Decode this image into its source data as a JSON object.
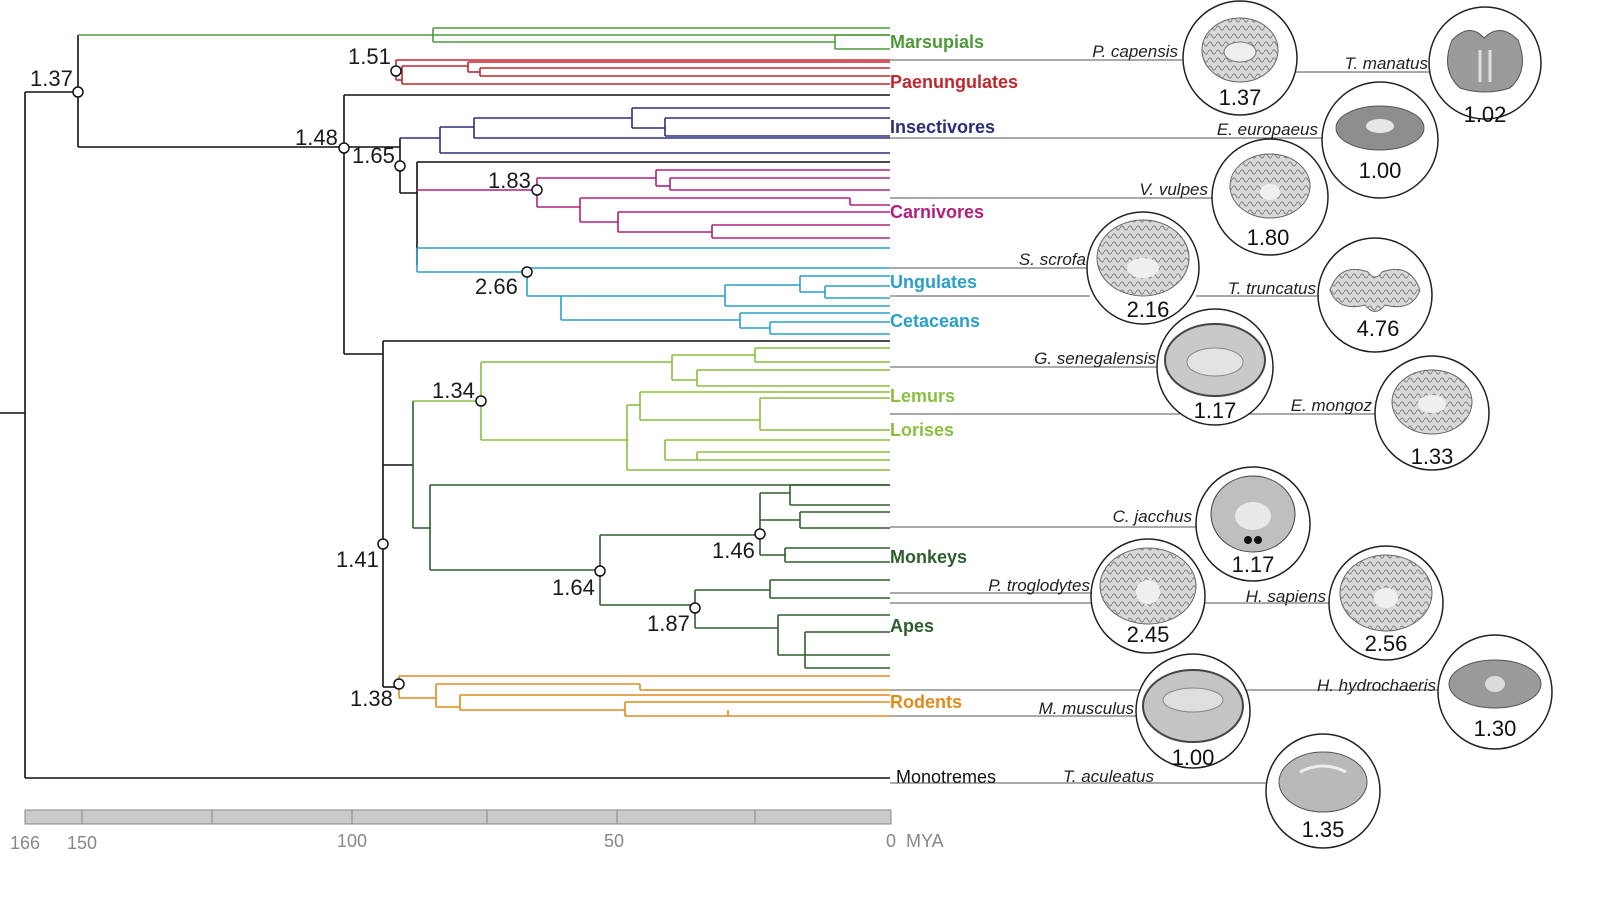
{
  "colors": {
    "black": "#111111",
    "marsupials": "#4e9a3a",
    "paenungulates": "#c0272d",
    "insectivores": "#2b2f7a",
    "carnivores": "#b0207a",
    "ungulates": "#2aa0c8",
    "primates_light": "#8bbf3f",
    "primates_dark": "#2f5e2c",
    "rodents": "#e08a1e",
    "axis_fill": "#c9cbca",
    "axis_text": "#8a8a8a"
  },
  "clades": [
    {
      "id": "marsupials",
      "label": "Marsupials",
      "color": "#4e9a3a"
    },
    {
      "id": "paenungulates",
      "label": "Paenungulates",
      "color": "#c0272d"
    },
    {
      "id": "insectivores",
      "label": "Insectivores",
      "color": "#2b2f7a"
    },
    {
      "id": "carnivores",
      "label": "Carnivores",
      "color": "#b0207a"
    },
    {
      "id": "ungulates",
      "label": "Ungulates",
      "color": "#2aa0c8"
    },
    {
      "id": "cetaceans",
      "label": "Cetaceans",
      "color": "#2aa0c8"
    },
    {
      "id": "lemurs",
      "label": "Lemurs",
      "color": "#8bbf3f"
    },
    {
      "id": "lorises",
      "label": "Lorises",
      "color": "#8bbf3f"
    },
    {
      "id": "monkeys",
      "label": "Monkeys",
      "color": "#2f5e2c"
    },
    {
      "id": "apes",
      "label": "Apes",
      "color": "#2f5e2c"
    },
    {
      "id": "rodents",
      "label": "Rodents",
      "color": "#e08a1e"
    },
    {
      "id": "monotremes",
      "label": "Monotremes",
      "color": "#111111"
    }
  ],
  "node_values": [
    "1.37",
    "1.51",
    "1.48",
    "1.65",
    "1.83",
    "2.66",
    "1.34",
    "1.41",
    "1.46",
    "1.64",
    "1.87",
    "1.38"
  ],
  "species": [
    {
      "name": "P. capensis",
      "value": "1.37"
    },
    {
      "name": "T. manatus",
      "value": "1.02"
    },
    {
      "name": "E. europaeus",
      "value": "1.00"
    },
    {
      "name": "V. vulpes",
      "value": "1.80"
    },
    {
      "name": "S. scrofa",
      "value": "2.16"
    },
    {
      "name": "T. truncatus",
      "value": "4.76"
    },
    {
      "name": "G. senegalensis",
      "value": "1.17"
    },
    {
      "name": "E. mongoz",
      "value": "1.33"
    },
    {
      "name": "C. jacchus",
      "value": "1.17"
    },
    {
      "name": "P. troglodytes",
      "value": "2.45"
    },
    {
      "name": "H. sapiens",
      "value": "2.56"
    },
    {
      "name": "H. hydrochaeris",
      "value": "1.30"
    },
    {
      "name": "M. musculus",
      "value": "1.00"
    },
    {
      "name": "T. aculeatus",
      "value": "1.35"
    }
  ],
  "axis": {
    "ticks": [
      "166",
      "150",
      "100",
      "50",
      "0"
    ],
    "unit": "MYA"
  }
}
